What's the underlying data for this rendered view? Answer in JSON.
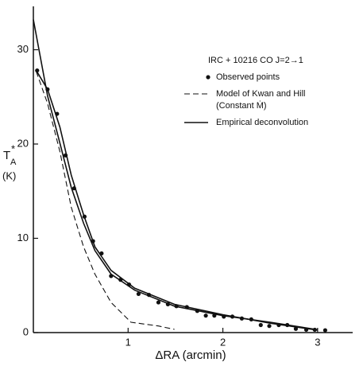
{
  "chart_data": {
    "type": "line",
    "x_label": "ΔRA (arcmin)",
    "y_label": {
      "main": "T",
      "sup": "*",
      "sub": "A",
      "unit": "(K)"
    },
    "legend_title": "IRC + 10216   CO J=2→1",
    "legend": "upper right",
    "xlim": [
      0,
      3.37
    ],
    "ylim": [
      0,
      34.6
    ],
    "xticks": [
      1,
      2,
      3
    ],
    "yticks": [
      0,
      10,
      20,
      30
    ],
    "series": [
      {
        "name": "Observed points",
        "style": "points",
        "color": "#111",
        "x": [
          0.04,
          0.15,
          0.25,
          0.34,
          0.43,
          0.54,
          0.63,
          0.72,
          0.82,
          0.92,
          1.01,
          1.11,
          1.22,
          1.32,
          1.42,
          1.51,
          1.62,
          1.73,
          1.82,
          1.91,
          2.01,
          2.1,
          2.2,
          2.3,
          2.4,
          2.49,
          2.59,
          2.68,
          2.77,
          2.88,
          2.97,
          3.08
        ],
        "values": [
          27.8,
          25.8,
          23.2,
          18.8,
          15.3,
          12.3,
          9.7,
          8.4,
          6.0,
          5.6,
          5.1,
          4.1,
          4.0,
          3.2,
          3.0,
          2.8,
          2.7,
          2.3,
          1.8,
          1.8,
          1.7,
          1.7,
          1.5,
          1.4,
          0.8,
          0.7,
          0.8,
          0.8,
          0.4,
          0.3,
          0.3,
          0.25
        ]
      },
      {
        "name": [
          "Model of Kwan and Hill",
          "(Constant Ṁ)"
        ],
        "style": "dashed",
        "color": "#111",
        "x": [
          0.03,
          0.15,
          0.28,
          0.4,
          0.53,
          0.65,
          0.82,
          1.03,
          1.32,
          1.49
        ],
        "values": [
          27.7,
          24.3,
          19.2,
          13.3,
          9.1,
          6.2,
          3.2,
          1.1,
          0.7,
          0.34
        ]
      },
      {
        "name": "Empirical deconvolution",
        "style": "solid",
        "color": "#111",
        "x": [
          0,
          0.07,
          0.15,
          0.28,
          0.4,
          0.53,
          0.65,
          0.82,
          1.07,
          1.49,
          2.0,
          2.5,
          3.0
        ],
        "values": [
          33.2,
          29.4,
          25.1,
          20.1,
          15.4,
          11.6,
          8.7,
          6.2,
          4.5,
          2.8,
          1.8,
          1.1,
          0.3
        ]
      },
      {
        "style": "solid",
        "color": "#111",
        "x": [
          0.03,
          0.15,
          0.28,
          0.4,
          0.53,
          0.65,
          0.82,
          1.07,
          1.49,
          2.0,
          2.5,
          3.0
        ],
        "values": [
          27.8,
          25.8,
          21.8,
          16.7,
          12.5,
          9.1,
          6.6,
          4.7,
          3.0,
          1.9,
          1.0,
          0.25
        ]
      }
    ]
  }
}
